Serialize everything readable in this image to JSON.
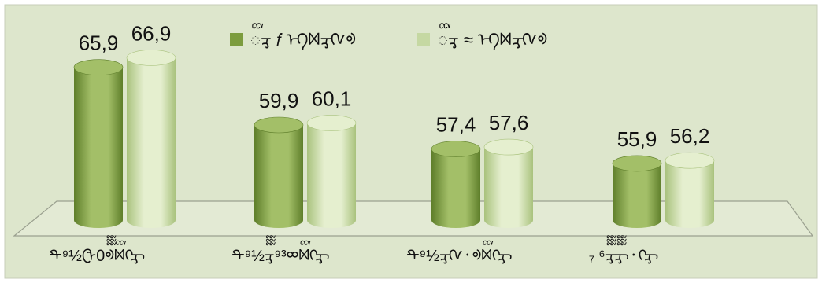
{
  "chart_data": {
    "type": "bar",
    "style": "3d-cylinder",
    "categories": [
      "ᡨ⁹½ᠿ0ᢆᢀᢅᢂᢉᢋ",
      "ᡨ⁹½ᢋᢆ⁹³ᢁᢅᢂᢉᢋ",
      "ᡨ⁹½ᢋᢉ᛫ᢀᢅᢂᢉᢋ",
      "₇ ⁶ᢋᢆᢋᢆ᛫ᢉᢋ"
    ],
    "series": [
      {
        "name": "ᢅᢋ 𝑓 ᡝᡴᢂᢋᢉᢀ",
        "values": [
          65.9,
          59.9,
          57.4,
          55.9
        ],
        "labels": [
          "65,9",
          "59,9",
          "57,4",
          "55,9"
        ]
      },
      {
        "name": "ᢅᢋ ≈ ᡝᡴᢂᢋᢉᢀ",
        "values": [
          66.9,
          60.1,
          57.6,
          56.2
        ],
        "labels": [
          "66,9",
          "60,1",
          "57,6",
          "56,2"
        ]
      }
    ],
    "legend_position": "top-center",
    "grid": false,
    "ylim": [
      50,
      68
    ],
    "colors": {
      "background": "#dde6cc",
      "series1_light": "#a3bf68",
      "series1_dark": "#5e7e2a",
      "series2_light": "#e5efcf",
      "series2_dark": "#a9c27d",
      "floor_line": "#9aa08f",
      "border": "#c7ceb8"
    }
  }
}
